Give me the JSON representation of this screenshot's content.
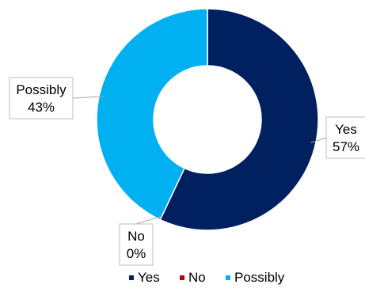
{
  "chart_data": {
    "type": "donut",
    "categories": [
      "Yes",
      "No",
      "Possibly"
    ],
    "values": [
      57,
      0,
      43
    ],
    "labels": [
      "57%",
      "0%",
      "43%"
    ],
    "colors": [
      "#002060",
      "#C00000",
      "#00B0F0"
    ],
    "legend_position": "bottom"
  }
}
